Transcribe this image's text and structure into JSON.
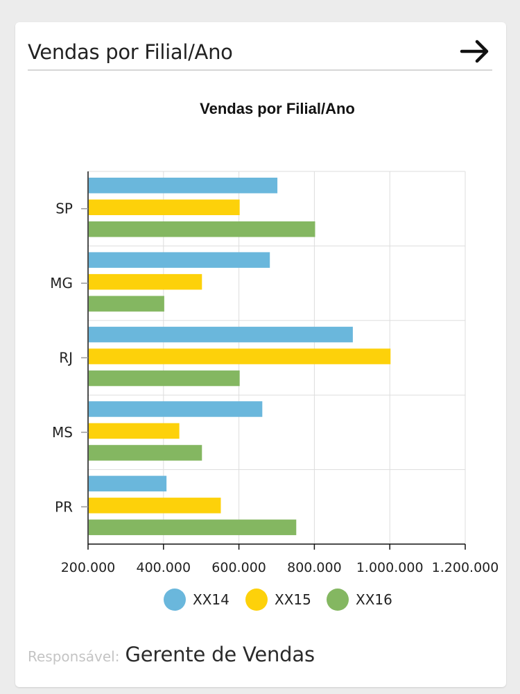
{
  "card": {
    "title": "Vendas por Filial/Ano",
    "arrow_icon": "arrow-right-icon"
  },
  "footer": {
    "label": "Responsável:",
    "value": "Gerente de Vendas"
  },
  "chart_data": {
    "type": "bar",
    "orientation": "horizontal",
    "title": "Vendas por Filial/Ano",
    "xlabel": "",
    "ylabel": "",
    "categories": [
      "SP",
      "MG",
      "RJ",
      "MS",
      "PR"
    ],
    "series": [
      {
        "name": "XX14",
        "color": "#6ab7dc",
        "values": [
          702000,
          682000,
          902000,
          662000,
          408000
        ]
      },
      {
        "name": "XX15",
        "color": "#fdd10a",
        "values": [
          602000,
          502000,
          1002000,
          442000,
          552000
        ]
      },
      {
        "name": "XX16",
        "color": "#84b761",
        "values": [
          802000,
          402000,
          602000,
          502000,
          752000
        ]
      }
    ],
    "xlim": [
      200000,
      1200000
    ],
    "xticks": [
      200000,
      400000,
      600000,
      800000,
      1000000,
      1200000
    ],
    "xtick_labels": [
      "200.000",
      "400.000",
      "600.000",
      "800.000",
      "1.000.000",
      "1.200.000"
    ],
    "grid": true,
    "legend": "bottom-center"
  }
}
